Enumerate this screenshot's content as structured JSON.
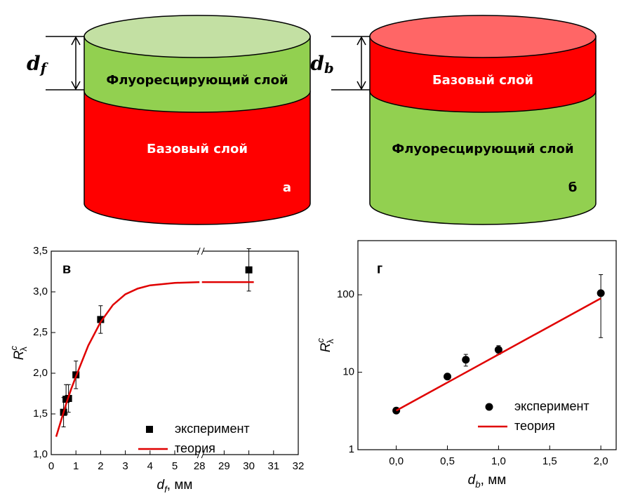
{
  "diagrams": [
    {
      "panel": "а",
      "thickness_label": {
        "symbol": "d",
        "subscript": "f"
      },
      "top_layer": "Флуоресцирующий слой",
      "bottom_layer": "Базовый слой",
      "cap_color": "#c3e0a3",
      "top_color": "#92d050",
      "bottom_color": "#ff0000"
    },
    {
      "panel": "б",
      "thickness_label": {
        "symbol": "d",
        "subscript": "b"
      },
      "top_layer": "Базовый слой",
      "bottom_layer": "Флуоресцирующий слой",
      "cap_color": "#ff6666",
      "top_color": "#ff0000",
      "bottom_color": "#92d050"
    }
  ],
  "chart_data": [
    {
      "type": "scatter",
      "panel_label": "в",
      "x_label": {
        "symbol": "d",
        "subscript": "f",
        "unit": ", мм"
      },
      "y_label": {
        "symbol": "R",
        "superscript": "c",
        "subscript": "λ"
      },
      "xlim": [
        0,
        32
      ],
      "x_break": [
        6,
        28
      ],
      "xticks": [
        0,
        1,
        2,
        3,
        4,
        5,
        28,
        29,
        30,
        31,
        32
      ],
      "ylim": [
        1,
        3.5
      ],
      "yticks": [
        {
          "value": 1,
          "label": "1,0"
        },
        {
          "value": 1.5,
          "label": "1,5"
        },
        {
          "value": 2,
          "label": "2,0"
        },
        {
          "value": 2.5,
          "label": "2,5"
        },
        {
          "value": 3,
          "label": "3,0"
        },
        {
          "value": 3.5,
          "label": "3,5"
        }
      ],
      "log_y": false,
      "legend": "lower right",
      "series": [
        {
          "name": "эксперимент",
          "color": "#000000",
          "marker": "square",
          "x": [
            0.5,
            0.6,
            0.7,
            1,
            2,
            30
          ],
          "values": [
            1.52,
            1.68,
            1.69,
            1.98,
            2.66,
            3.27
          ],
          "errors": [
            0.18,
            0.18,
            0.17,
            0.17,
            0.17,
            0.26
          ]
        },
        {
          "name": "теория",
          "color": "#e00000",
          "marker": "line",
          "x": [
            0.2,
            0.4,
            0.6,
            0.8,
            1,
            1.5,
            2,
            2.5,
            3,
            3.5,
            4,
            5,
            6,
            28,
            28.1,
            30.2
          ],
          "values": [
            1.22,
            1.42,
            1.62,
            1.8,
            1.96,
            2.34,
            2.63,
            2.84,
            2.97,
            3.04,
            3.08,
            3.11,
            3.12,
            null,
            3.12,
            3.12
          ]
        }
      ]
    },
    {
      "type": "scatter",
      "panel_label": "г",
      "x_label": {
        "symbol": "d",
        "subscript": "b",
        "unit": ", мм"
      },
      "y_label": {
        "symbol": "R",
        "superscript": "c",
        "subscript": "λ"
      },
      "xlim": [
        -0.375,
        2.15
      ],
      "xticks": [
        {
          "value": 0,
          "label": "0,0"
        },
        {
          "value": 0.5,
          "label": "0,5"
        },
        {
          "value": 1,
          "label": "1,0"
        },
        {
          "value": 1.5,
          "label": "1,5"
        },
        {
          "value": 2,
          "label": "2,0"
        }
      ],
      "ylim": [
        1,
        500
      ],
      "yticks": [
        1,
        10,
        100
      ],
      "log_y": true,
      "legend": "lower right",
      "series": [
        {
          "name": "эксперимент",
          "color": "#000000",
          "marker": "circle",
          "x": [
            0,
            0.5,
            0.68,
            1,
            2
          ],
          "values": [
            3.2,
            8.8,
            14.5,
            19.5,
            105
          ],
          "errors": [
            null,
            null,
            2.5,
            2.5,
            77
          ]
        },
        {
          "name": "теория",
          "color": "#e00000",
          "marker": "line",
          "x": [
            0,
            2
          ],
          "values": [
            3.2,
            90
          ]
        }
      ]
    }
  ]
}
